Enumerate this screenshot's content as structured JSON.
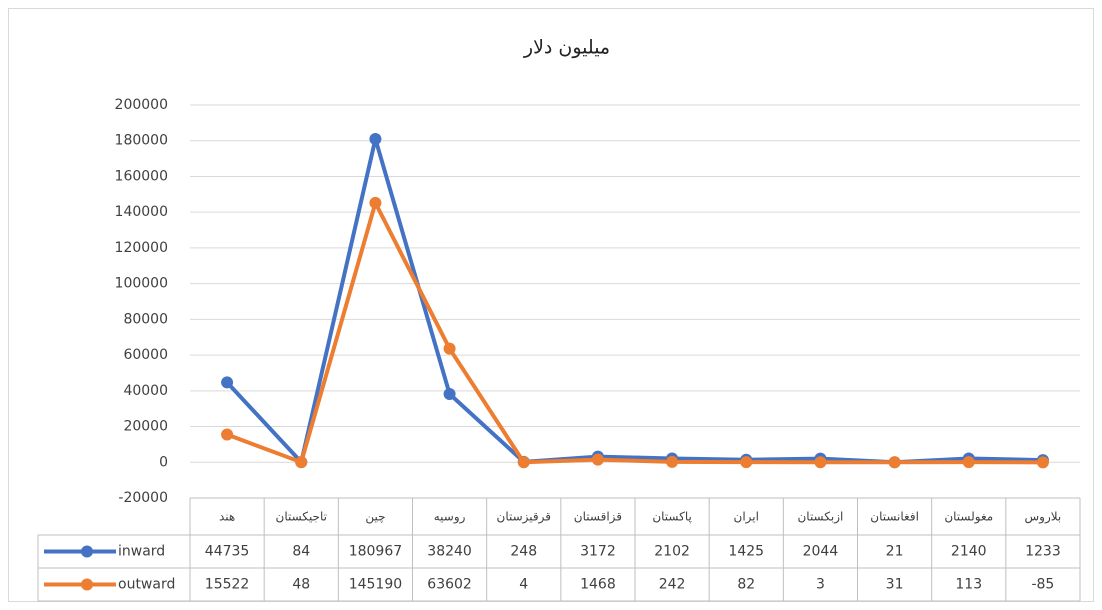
{
  "chart_data": {
    "type": "line",
    "title": "میلیون دلار",
    "categories": [
      "هند",
      "تاجیکستان",
      "چین",
      "روسیه",
      "قرقیزستان",
      "قزاقستان",
      "پاکستان",
      "ایران",
      "ازبکستان",
      "افغانستان",
      "مغولستان",
      "بلاروس"
    ],
    "series": [
      {
        "name": "inward",
        "color": "#4472c4",
        "values": [
          44735,
          84,
          180967,
          38240,
          248,
          3172,
          2102,
          1425,
          2044,
          21,
          2140,
          1233
        ]
      },
      {
        "name": "outward",
        "color": "#ed7d31",
        "values": [
          15522,
          48,
          145190,
          63602,
          4,
          1468,
          242,
          82,
          3,
          31,
          113,
          -85
        ]
      }
    ],
    "ylim": [
      -20000,
      200000
    ],
    "yticks": [
      -20000,
      0,
      20000,
      40000,
      60000,
      80000,
      100000,
      120000,
      140000,
      160000,
      180000,
      200000
    ],
    "grid": true,
    "data_table": true
  }
}
